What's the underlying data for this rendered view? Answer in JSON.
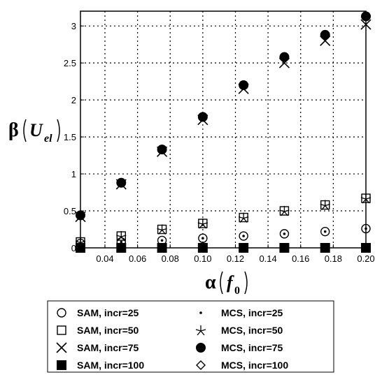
{
  "chart_data": {
    "type": "scatter",
    "x": [
      0.025,
      0.05,
      0.075,
      0.1,
      0.125,
      0.15,
      0.175,
      0.2
    ],
    "xlim": [
      0.025,
      0.2
    ],
    "ylim": [
      0,
      3.2
    ],
    "x_ticks": [
      "0.04",
      "0.06",
      "0.08",
      "0.10",
      "0.12",
      "0.14",
      "0.16",
      "0.18",
      "0.20"
    ],
    "y_ticks": [
      "0",
      "0.5",
      "1",
      "1.5",
      "2",
      "2.5",
      "3"
    ],
    "grid": true,
    "legend_position": "bottom",
    "ylabel": {
      "greek": "β",
      "var": "U",
      "sub": "el"
    },
    "xlabel": {
      "greek": "α",
      "var": "f",
      "sub": "0"
    },
    "series": [
      {
        "name": "SAM, incr=25",
        "marker": "circle-open",
        "values": [
          0.06,
          0.08,
          0.1,
          0.13,
          0.16,
          0.19,
          0.22,
          0.26
        ]
      },
      {
        "name": "SAM, incr=50",
        "marker": "square-open",
        "values": [
          0.08,
          0.16,
          0.25,
          0.33,
          0.41,
          0.5,
          0.58,
          0.67
        ]
      },
      {
        "name": "SAM, incr=75",
        "marker": "x",
        "values": [
          0.42,
          0.86,
          1.3,
          1.73,
          2.15,
          2.5,
          2.8,
          3.02
        ]
      },
      {
        "name": "SAM, incr=100",
        "marker": "square-filled",
        "values": [
          0,
          0,
          0,
          0,
          0,
          0,
          0,
          0
        ]
      },
      {
        "name": "MCS, incr=25",
        "marker": "dot",
        "values": [
          0.06,
          0.08,
          0.1,
          0.13,
          0.16,
          0.19,
          0.22,
          0.26
        ]
      },
      {
        "name": "MCS, incr=50",
        "marker": "star",
        "values": [
          0.08,
          0.16,
          0.25,
          0.33,
          0.41,
          0.5,
          0.58,
          0.67
        ]
      },
      {
        "name": "MCS, incr=75",
        "marker": "circle-filled",
        "values": [
          0.44,
          0.88,
          1.33,
          1.77,
          2.2,
          2.58,
          2.88,
          3.13
        ]
      },
      {
        "name": "MCS, incr=100",
        "marker": "diamond-open",
        "values": [
          0,
          0,
          0,
          0,
          0,
          0,
          0,
          0
        ]
      }
    ]
  }
}
